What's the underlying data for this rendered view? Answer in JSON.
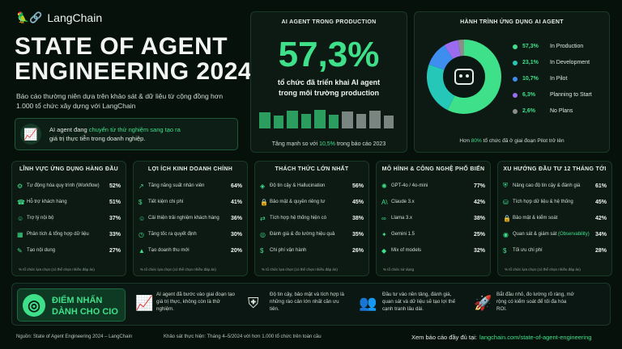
{
  "brand": {
    "name": "LangChain"
  },
  "hero": {
    "title_line1": "STATE OF AGENT",
    "title_line2": "ENGINEERING 2024",
    "desc": "Báo cáo thường niên dựa trên khảo sát & dữ liệu từ cộng đồng hơn 1.000 tổ chức xây dựng với LangChain",
    "callout_pre": "AI agent đang ",
    "callout_hl": "chuyển từ thử nghiệm sang tạo ra",
    "callout_post": "giá trị thực tiễn trong doanh nghiệp."
  },
  "production": {
    "header": "AI AGENT TRONG PRODUCTION",
    "big": "57,3%",
    "line1": "tổ chức đã triển khai AI agent",
    "line2": "trong môi trường production",
    "growth_pre": "Tăng mạnh so với ",
    "growth_hl": "10,5%",
    "growth_post": " trong báo cáo 2023"
  },
  "journey": {
    "header": "HÀNH TRÌNH ỨNG DỤNG AI AGENT",
    "segments": [
      {
        "value": "57,3%",
        "label": "In Production",
        "pct": 57.3,
        "color": "#3fe08a"
      },
      {
        "value": "23,1%",
        "label": "In Development",
        "pct": 23.1,
        "color": "#25c7b8"
      },
      {
        "value": "10,7%",
        "label": "In Pilot",
        "pct": 10.7,
        "color": "#3e8ef0"
      },
      {
        "value": "6,3%",
        "label": "Planning to Start",
        "pct": 6.3,
        "color": "#9b6cf0"
      },
      {
        "value": "2,6%",
        "label": "No Plans",
        "pct": 2.6,
        "color": "#8a8f8c"
      }
    ],
    "note_pre": "Hơn ",
    "note_hl": "80%",
    "note_post": " tổ chức đã ở giai đoạn Pilot trở lên"
  },
  "cards": [
    {
      "title": "LĨNH VỰC ỨNG DỤNG HÀNG ĐẦU",
      "foot": "% tổ chức lựa chọn (có thể chọn nhiều đáp án)",
      "items": [
        {
          "icon": "⚙",
          "label": "Tự động hóa quy trình (Workflow)",
          "hl": "",
          "pct": "52%"
        },
        {
          "icon": "☎",
          "label": "Hỗ trợ khách hàng",
          "hl": "",
          "pct": "51%"
        },
        {
          "icon": "☺",
          "label": "Trợ lý nội bộ",
          "hl": "",
          "pct": "37%"
        },
        {
          "icon": "▦",
          "label": "Phân tích & tổng hợp dữ liệu",
          "hl": "",
          "pct": "33%"
        },
        {
          "icon": "✎",
          "label": "Tạo nội dung",
          "hl": "",
          "pct": "27%"
        }
      ]
    },
    {
      "title": "LỢI ÍCH KINH DOANH CHÍNH",
      "foot": "% tổ chức lựa chọn (có thể chọn nhiều đáp án)",
      "items": [
        {
          "icon": "↗",
          "label": "Tăng năng suất nhân viên",
          "hl": "",
          "pct": "64%"
        },
        {
          "icon": "$",
          "label": "Tiết kiệm chi phí",
          "hl": "",
          "pct": "41%"
        },
        {
          "icon": "☺",
          "label": "Cải thiện trải nghiệm khách hàng",
          "hl": "",
          "pct": "36%"
        },
        {
          "icon": "◷",
          "label": "Tăng tốc ra quyết định",
          "hl": "",
          "pct": "30%"
        },
        {
          "icon": "▲",
          "label": "Tạo doanh thu mới",
          "hl": "",
          "pct": "20%"
        }
      ]
    },
    {
      "title": "THÁCH THỨC LỚN NHẤT",
      "foot": "% tổ chức lựa chọn (có thể chọn nhiều đáp án)",
      "items": [
        {
          "icon": "◈",
          "label": "Độ tin cậy & Hallucination",
          "hl": "",
          "pct": "56%"
        },
        {
          "icon": "🔒",
          "label": "Bảo mật & quyền riêng tư",
          "hl": "",
          "pct": "45%"
        },
        {
          "icon": "⇄",
          "label": "Tích hợp hệ thống hiện có",
          "hl": "",
          "pct": "38%"
        },
        {
          "icon": "◎",
          "label": "Đánh giá & đo lường hiệu quả",
          "hl": "",
          "pct": "35%"
        },
        {
          "icon": "$",
          "label": "Chi phí vận hành",
          "hl": "",
          "pct": "26%"
        }
      ]
    },
    {
      "title": "MÔ HÌNH & CÔNG NGHỆ PHỔ BIẾN",
      "foot": "% tổ chức sử dụng",
      "items": [
        {
          "icon": "✺",
          "label": "GPT-4o / 4o-mini",
          "hl": "",
          "pct": "77%"
        },
        {
          "icon": "A\\",
          "label": "Claude 3.x",
          "hl": "",
          "pct": "42%"
        },
        {
          "icon": "∞",
          "label": "Llama 3.x",
          "hl": "",
          "pct": "38%"
        },
        {
          "icon": "✦",
          "label": "Gemini 1.5",
          "hl": "",
          "pct": "25%"
        },
        {
          "icon": "◆",
          "label": "Mix of models",
          "hl": "",
          "pct": "32%"
        }
      ]
    },
    {
      "title": "XU HƯỚNG ĐẦU TƯ 12 THÁNG TỚI",
      "foot": "% tổ chức lựa chọn (có thể chọn nhiều đáp án)",
      "items": [
        {
          "icon": "⛨",
          "label": "Nâng cao độ tin cậy & đánh giá",
          "hl": "",
          "pct": "61%"
        },
        {
          "icon": "⛁",
          "label": "Tích hợp dữ liệu & hệ thống",
          "hl": "",
          "pct": "45%"
        },
        {
          "icon": "🔒",
          "label": "Bảo mật & kiểm soát",
          "hl": "",
          "pct": "42%"
        },
        {
          "icon": "◉",
          "label": "Quan sát & giám sát ",
          "hl": "(Observability)",
          "pct": "34%"
        },
        {
          "icon": "$",
          "label": "Tối ưu chi phí",
          "hl": "",
          "pct": "28%"
        }
      ]
    }
  ],
  "cio": {
    "title1": "ĐIỂM NHẤN",
    "title2": "DÀNH CHO CIO",
    "items": [
      "AI agent đã bước vào giai đoạn tạo giá trị thực, không còn là thử nghiệm.",
      "Độ tin cậy, bảo mật và tích hợp là những rào cản lớn nhất cần ưu tiên.",
      "Đầu tư vào nền tảng, đánh giá, quan sát và dữ liệu sẽ tạo lợi thế cạnh tranh lâu dài.",
      "Bắt đầu nhỏ, đo lường rõ ràng, mở rộng có kiểm soát để tối đa hóa ROI."
    ]
  },
  "footer": {
    "source": "Nguồn: State of Agent Engineering 2024 – LangChain",
    "survey": "Khảo sát thực hiện: Tháng 4–5/2024 với hơn 1.000 tổ chức trên toàn cầu",
    "cta": "Xem báo cáo đầy đủ tại:",
    "url": "langchain.com/state-of-agent-engineering"
  }
}
